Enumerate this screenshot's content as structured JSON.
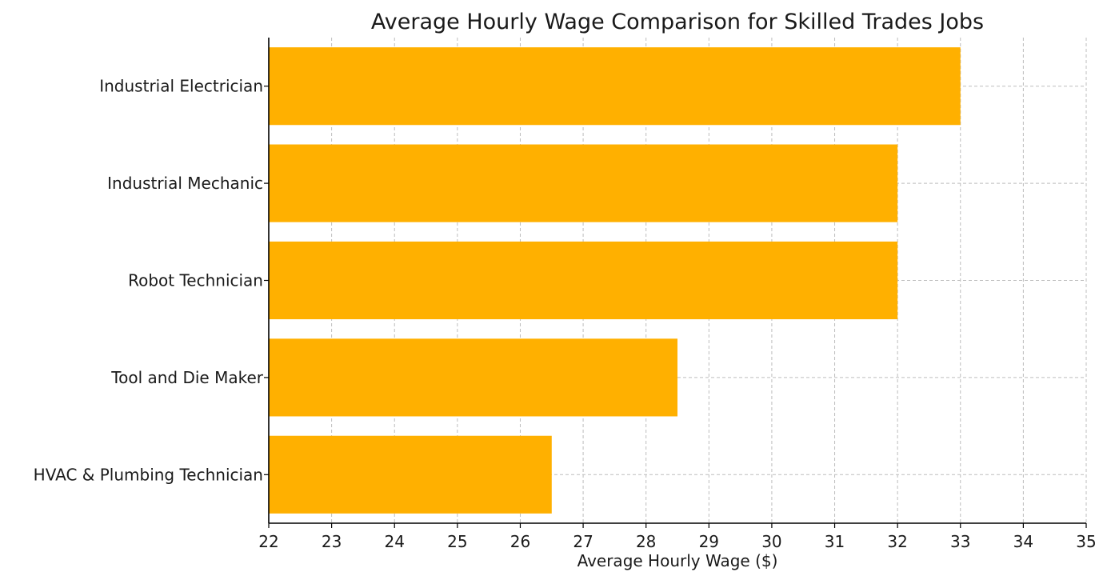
{
  "chart_data": {
    "type": "bar",
    "orientation": "horizontal",
    "title": "Average Hourly Wage Comparison for Skilled Trades Jobs",
    "xlabel": "Average Hourly Wage ($)",
    "ylabel": "",
    "categories": [
      "Industrial Electrician",
      "Industrial Mechanic",
      "Robot Technician",
      "Tool and Die Maker",
      "HVAC & Plumbing Technician"
    ],
    "values": [
      33,
      32,
      32,
      28.5,
      26.5
    ],
    "xlim": [
      22,
      35
    ],
    "xticks": [
      22,
      23,
      24,
      25,
      26,
      27,
      28,
      29,
      30,
      31,
      32,
      33,
      34,
      35
    ],
    "grid": true,
    "bar_color": "#FFB000",
    "grid_color": "#bdbdbd"
  }
}
